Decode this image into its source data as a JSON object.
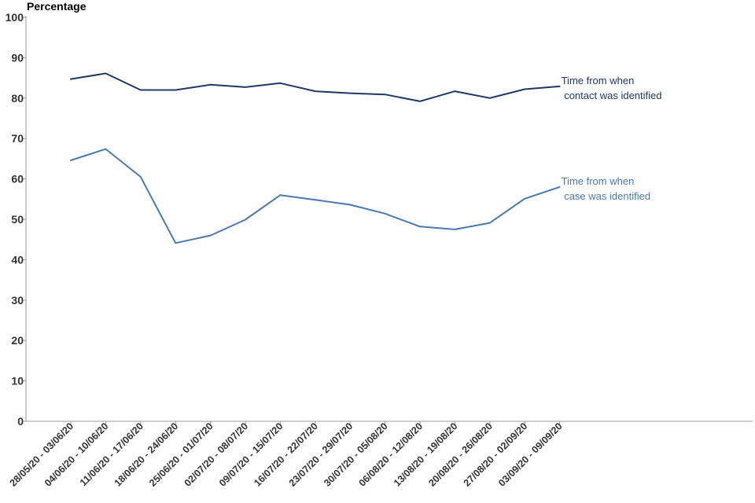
{
  "chart_data": {
    "type": "line",
    "title": "",
    "ylabel": "Percentage",
    "xlabel": "",
    "ylim": [
      0,
      100
    ],
    "yticks": [
      0,
      10,
      20,
      30,
      40,
      50,
      60,
      70,
      80,
      90,
      100
    ],
    "grid": false,
    "categories": [
      "28/05/20 - 03/06/20",
      "04/06/20 - 10/06/20",
      "11/06/20 - 17/06/20",
      "18/06/20 - 24/06/20",
      "25/06/20 - 01/07/20",
      "02/07/20 - 08/07/20",
      "09/07/20 - 15/07/20",
      "16/07/20 - 22/07/20",
      "23/07/20 - 29/07/20",
      "30/07/20 - 05/08/20",
      "06/08/20 - 12/08/20",
      "13/08/20 - 19/08/20",
      "20/08/20 - 26/08/20",
      "27/08/20 - 02/09/20",
      "03/09/20 - 09/09/20"
    ],
    "series": [
      {
        "name": "Time from when contact was identified",
        "label_lines": [
          "Time from when",
          " contact was identified"
        ],
        "color": "#1f3864",
        "values": [
          84.7,
          86.1,
          82.0,
          82.0,
          83.3,
          82.7,
          83.7,
          81.7,
          81.2,
          80.9,
          79.2,
          81.7,
          80.0,
          82.2,
          82.9
        ]
      },
      {
        "name": "Time from when case was identified",
        "label_lines": [
          "Time from when",
          " case was identified"
        ],
        "color": "#4a78b5",
        "values": [
          64.6,
          67.4,
          60.5,
          44.1,
          46.0,
          49.9,
          56.0,
          54.8,
          53.6,
          51.4,
          48.2,
          47.5,
          49.1,
          55.1,
          58.0
        ]
      }
    ]
  }
}
